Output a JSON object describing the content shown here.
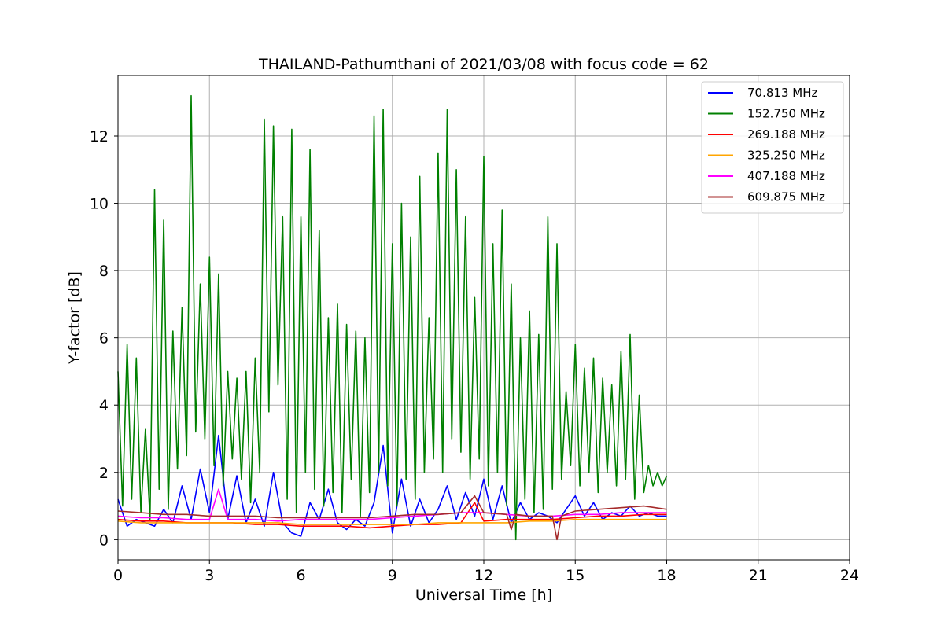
{
  "chart_data": {
    "type": "line",
    "title": "THAILAND-Pathumthani of 2021/03/08 with focus code = 62",
    "xlabel": "Universal Time [h]",
    "ylabel": "Y-factor [dB]",
    "xlim": [
      0,
      24
    ],
    "ylim": [
      -0.6,
      13.8
    ],
    "xticks": [
      0,
      3,
      6,
      9,
      12,
      15,
      18,
      21,
      24
    ],
    "yticks": [
      0,
      2,
      4,
      6,
      8,
      10,
      12
    ],
    "grid": true,
    "legend_position": "top-right",
    "series": [
      {
        "name": " 70.813 MHz",
        "color": "#0000ff",
        "x": [
          0,
          0.3,
          0.6,
          0.9,
          1.2,
          1.5,
          1.8,
          2.1,
          2.4,
          2.7,
          3.0,
          3.3,
          3.6,
          3.9,
          4.2,
          4.5,
          4.8,
          5.1,
          5.4,
          5.7,
          6.0,
          6.3,
          6.6,
          6.9,
          7.2,
          7.5,
          7.8,
          8.1,
          8.4,
          8.7,
          9.0,
          9.3,
          9.6,
          9.9,
          10.2,
          10.5,
          10.8,
          11.1,
          11.4,
          11.7,
          12.0,
          12.3,
          12.6,
          12.9,
          13.2,
          13.5,
          13.8,
          14.1,
          14.4,
          14.7,
          15.0,
          15.3,
          15.6,
          15.9,
          16.2,
          16.5,
          16.8,
          17.1,
          17.4,
          17.7,
          18.0
        ],
        "y": [
          1.2,
          0.4,
          0.6,
          0.5,
          0.4,
          0.9,
          0.5,
          1.6,
          0.6,
          2.1,
          0.8,
          3.1,
          0.6,
          1.9,
          0.5,
          1.2,
          0.4,
          2.0,
          0.5,
          0.2,
          0.1,
          1.1,
          0.6,
          1.5,
          0.5,
          0.3,
          0.6,
          0.4,
          1.1,
          2.8,
          0.2,
          1.8,
          0.4,
          1.2,
          0.5,
          0.9,
          1.6,
          0.6,
          1.4,
          0.7,
          1.8,
          0.6,
          1.6,
          0.5,
          1.1,
          0.6,
          0.8,
          0.7,
          0.5,
          0.9,
          1.3,
          0.7,
          1.1,
          0.6,
          0.8,
          0.7,
          1.0,
          0.7,
          0.8,
          0.7,
          0.7
        ]
      },
      {
        "name": "152.750 MHz",
        "color": "#008000",
        "x": [
          0,
          0.15,
          0.3,
          0.45,
          0.6,
          0.75,
          0.9,
          1.05,
          1.2,
          1.35,
          1.5,
          1.65,
          1.8,
          1.95,
          2.1,
          2.25,
          2.4,
          2.55,
          2.7,
          2.85,
          3.0,
          3.15,
          3.3,
          3.45,
          3.6,
          3.75,
          3.9,
          4.05,
          4.2,
          4.35,
          4.5,
          4.65,
          4.8,
          4.95,
          5.1,
          5.25,
          5.4,
          5.55,
          5.7,
          5.85,
          6.0,
          6.15,
          6.3,
          6.45,
          6.6,
          6.75,
          6.9,
          7.05,
          7.2,
          7.35,
          7.5,
          7.65,
          7.8,
          7.95,
          8.1,
          8.25,
          8.4,
          8.55,
          8.7,
          8.85,
          9.0,
          9.15,
          9.3,
          9.45,
          9.6,
          9.75,
          9.9,
          10.05,
          10.2,
          10.35,
          10.5,
          10.65,
          10.8,
          10.95,
          11.1,
          11.25,
          11.4,
          11.55,
          11.7,
          11.85,
          12.0,
          12.15,
          12.3,
          12.45,
          12.6,
          12.75,
          12.9,
          13.05,
          13.2,
          13.35,
          13.5,
          13.65,
          13.8,
          13.95,
          14.1,
          14.25,
          14.4,
          14.55,
          14.7,
          14.85,
          15.0,
          15.15,
          15.3,
          15.45,
          15.6,
          15.75,
          15.9,
          16.05,
          16.2,
          16.35,
          16.5,
          16.65,
          16.8,
          16.95,
          17.1,
          17.25,
          17.4,
          17.55,
          17.7,
          17.85,
          18.0
        ],
        "y": [
          5.0,
          1.0,
          5.8,
          1.2,
          5.4,
          0.8,
          3.3,
          0.6,
          10.4,
          1.5,
          9.5,
          0.9,
          6.2,
          2.1,
          6.9,
          2.5,
          13.2,
          3.2,
          7.6,
          3.0,
          8.4,
          2.2,
          7.9,
          1.6,
          5.0,
          2.4,
          4.8,
          1.8,
          5.0,
          1.1,
          5.4,
          2.0,
          12.5,
          3.8,
          12.3,
          4.6,
          9.6,
          1.2,
          12.2,
          0.8,
          9.6,
          2.0,
          11.6,
          1.5,
          9.2,
          1.0,
          6.6,
          1.4,
          7.0,
          0.8,
          6.4,
          1.8,
          6.2,
          0.7,
          6.0,
          1.4,
          12.6,
          2.0,
          12.8,
          1.6,
          8.8,
          1.0,
          10.0,
          1.8,
          9.0,
          1.2,
          10.8,
          2.0,
          6.6,
          2.4,
          11.5,
          2.0,
          12.8,
          3.0,
          11.0,
          2.6,
          9.6,
          1.8,
          7.2,
          2.4,
          11.4,
          1.6,
          8.8,
          2.0,
          9.8,
          1.0,
          7.6,
          0.0,
          6.0,
          1.2,
          6.8,
          0.8,
          6.1,
          0.9,
          9.6,
          1.5,
          8.8,
          1.8,
          4.4,
          2.2,
          5.8,
          1.6,
          5.1,
          2.0,
          5.4,
          1.4,
          4.8,
          2.0,
          4.6,
          1.6,
          5.6,
          1.8,
          6.1,
          1.2,
          4.3,
          1.4,
          2.2,
          1.6,
          2.0,
          1.6,
          1.9
        ]
      },
      {
        "name": "269.188 MHz",
        "color": "#ff0000",
        "x": [
          0,
          0.75,
          1.5,
          2.25,
          3.0,
          3.75,
          4.5,
          5.25,
          6.0,
          6.75,
          7.5,
          8.25,
          9.0,
          9.75,
          10.5,
          11.25,
          11.7,
          12.0,
          12.75,
          13.5,
          14.25,
          15.0,
          15.75,
          16.5,
          17.25,
          18.0
        ],
        "y": [
          0.6,
          0.55,
          0.55,
          0.5,
          0.5,
          0.5,
          0.45,
          0.45,
          0.4,
          0.4,
          0.4,
          0.35,
          0.4,
          0.45,
          0.45,
          0.5,
          1.1,
          0.55,
          0.6,
          0.6,
          0.6,
          0.65,
          0.7,
          0.7,
          0.75,
          0.75
        ]
      },
      {
        "name": "325.250 MHz",
        "color": "#ffa500",
        "x": [
          0,
          0.75,
          1.5,
          2.25,
          3.0,
          3.75,
          4.5,
          5.25,
          6.0,
          6.75,
          7.5,
          8.25,
          9.0,
          9.75,
          10.5,
          11.25,
          12.0,
          12.75,
          13.5,
          14.25,
          15.0,
          15.75,
          16.5,
          17.25,
          18.0
        ],
        "y": [
          0.55,
          0.5,
          0.5,
          0.5,
          0.5,
          0.5,
          0.5,
          0.5,
          0.45,
          0.45,
          0.45,
          0.45,
          0.45,
          0.45,
          0.5,
          0.5,
          0.5,
          0.5,
          0.55,
          0.55,
          0.6,
          0.6,
          0.6,
          0.6,
          0.6
        ]
      },
      {
        "name": "407.188 MHz",
        "color": "#ff00ff",
        "x": [
          0,
          0.75,
          1.5,
          2.25,
          3.0,
          3.3,
          3.6,
          4.5,
          5.25,
          6.0,
          6.75,
          7.5,
          8.25,
          9.0,
          9.75,
          10.5,
          11.25,
          12.0,
          12.75,
          13.5,
          14.25,
          15.0,
          15.75,
          16.5,
          17.25,
          18.0
        ],
        "y": [
          0.7,
          0.65,
          0.65,
          0.6,
          0.6,
          1.5,
          0.6,
          0.6,
          0.55,
          0.6,
          0.6,
          0.6,
          0.6,
          0.65,
          0.7,
          0.75,
          0.8,
          0.8,
          0.75,
          0.7,
          0.7,
          0.75,
          0.75,
          0.8,
          0.8,
          0.8
        ]
      },
      {
        "name": "609.875 MHz",
        "color": "#a52a2a",
        "x": [
          0,
          0.75,
          1.5,
          2.25,
          3.0,
          3.75,
          4.5,
          5.25,
          6.0,
          6.75,
          7.5,
          8.25,
          9.0,
          9.75,
          10.5,
          11.25,
          11.7,
          12.0,
          12.75,
          12.9,
          13.05,
          13.5,
          14.25,
          14.4,
          14.55,
          15.0,
          15.75,
          16.5,
          17.25,
          18.0
        ],
        "y": [
          0.85,
          0.8,
          0.75,
          0.75,
          0.7,
          0.7,
          0.7,
          0.65,
          0.65,
          0.65,
          0.65,
          0.65,
          0.7,
          0.75,
          0.75,
          0.8,
          1.3,
          0.8,
          0.75,
          0.3,
          0.75,
          0.7,
          0.7,
          0.0,
          0.7,
          0.85,
          0.9,
          0.95,
          1.0,
          0.9
        ]
      }
    ]
  }
}
